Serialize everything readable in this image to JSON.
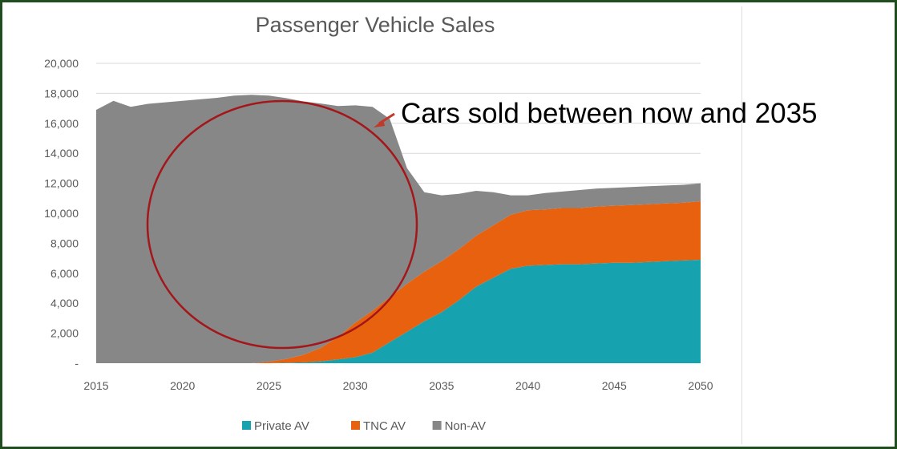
{
  "chart_data": {
    "type": "area",
    "stacked": true,
    "title": "Passenger Vehicle Sales",
    "x": [
      2015,
      2016,
      2017,
      2018,
      2019,
      2020,
      2021,
      2022,
      2023,
      2024,
      2025,
      2026,
      2027,
      2028,
      2029,
      2030,
      2031,
      2032,
      2033,
      2034,
      2035,
      2036,
      2037,
      2038,
      2039,
      2040,
      2041,
      2042,
      2043,
      2044,
      2045,
      2046,
      2047,
      2048,
      2049,
      2050
    ],
    "xticks": [
      "2015",
      "2020",
      "2025",
      "2030",
      "2035",
      "2040",
      "2045",
      "2050"
    ],
    "yticks": [
      "-",
      "2,000",
      "4,000",
      "6,000",
      "8,000",
      "10,000",
      "12,000",
      "14,000",
      "16,000",
      "18,000",
      "20,000"
    ],
    "ylim": [
      0,
      20000
    ],
    "grid": true,
    "legend_position": "bottom",
    "series": [
      {
        "name": "Private AV",
        "color": "#17a2b0",
        "values": [
          0,
          0,
          0,
          0,
          0,
          0,
          0,
          0,
          0,
          0,
          0,
          30,
          60,
          120,
          250,
          400,
          700,
          1400,
          2100,
          2800,
          3400,
          4200,
          5100,
          5700,
          6300,
          6500,
          6550,
          6600,
          6600,
          6650,
          6700,
          6700,
          6750,
          6800,
          6850,
          6900
        ]
      },
      {
        "name": "TNC AV",
        "color": "#e8610f",
        "values": [
          0,
          0,
          0,
          0,
          0,
          0,
          0,
          0,
          0,
          0,
          100,
          250,
          500,
          900,
          1500,
          2300,
          2800,
          3000,
          3200,
          3300,
          3400,
          3400,
          3400,
          3500,
          3600,
          3700,
          3700,
          3750,
          3750,
          3800,
          3800,
          3850,
          3850,
          3850,
          3850,
          3900
        ]
      },
      {
        "name": "Non-AV",
        "color": "#878787",
        "values": [
          16900,
          17500,
          17100,
          17300,
          17400,
          17500,
          17600,
          17700,
          17850,
          17900,
          17750,
          17400,
          16900,
          16300,
          15400,
          14500,
          13600,
          11900,
          7700,
          5300,
          4400,
          3700,
          3000,
          2200,
          1300,
          1000,
          1100,
          1100,
          1200,
          1200,
          1200,
          1200,
          1200,
          1200,
          1200,
          1200
        ]
      }
    ],
    "annotation": "Cars sold between now and 2035"
  },
  "colors": {
    "circle": "#a4161a",
    "arrow": "#c0392b",
    "gridline": "#d9d9d9",
    "frame": "#1f4d1f"
  }
}
